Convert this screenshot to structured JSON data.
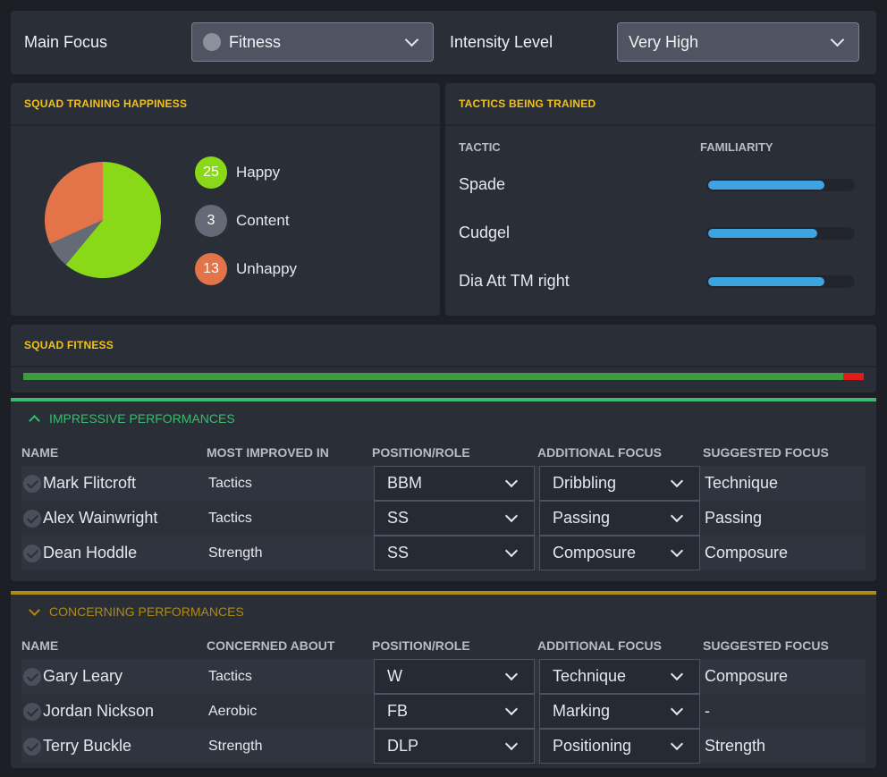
{
  "top": {
    "main_focus_label": "Main Focus",
    "main_focus_value": "Fitness",
    "intensity_label": "Intensity Level",
    "intensity_value": "Very High"
  },
  "happiness": {
    "title": "SQUAD TRAINING HAPPINESS",
    "items": [
      {
        "count": "25",
        "label": "Happy",
        "color": "#8ad918"
      },
      {
        "count": "3",
        "label": "Content",
        "color": "#646a76"
      },
      {
        "count": "13",
        "label": "Unhappy",
        "color": "#e3744a"
      }
    ]
  },
  "tactics": {
    "title": "TACTICS BEING TRAINED",
    "col_tactic": "TACTIC",
    "col_familiarity": "FAMILIARITY",
    "rows": [
      {
        "name": "Spade",
        "familiarity": 0.8
      },
      {
        "name": "Cudgel",
        "familiarity": 0.75
      },
      {
        "name": "Dia Att TM right",
        "familiarity": 0.8
      }
    ]
  },
  "fitness": {
    "title": "SQUAD FITNESS",
    "level": 0.975,
    "colors": {
      "fill": "#3f9a42",
      "rest": "#e11c1c"
    }
  },
  "impressive": {
    "title": "IMPRESSIVE PERFORMANCES",
    "color": "#3dba6f",
    "headers": [
      "NAME",
      "MOST IMPROVED IN",
      "POSITION/ROLE",
      "ADDITIONAL FOCUS",
      "SUGGESTED FOCUS"
    ],
    "rows": [
      {
        "name": "Mark Flitcroft",
        "improved": "Tactics",
        "role": "BBM",
        "additional": "Dribbling",
        "suggested": "Technique"
      },
      {
        "name": "Alex Wainwright",
        "improved": "Tactics",
        "role": "SS",
        "additional": "Passing",
        "suggested": "Passing"
      },
      {
        "name": "Dean Hoddle",
        "improved": "Strength",
        "role": "SS",
        "additional": "Composure",
        "suggested": "Composure"
      }
    ]
  },
  "concerning": {
    "title": "CONCERNING PERFORMANCES",
    "color": "#b08a14",
    "headers": [
      "NAME",
      "CONCERNED ABOUT",
      "POSITION/ROLE",
      "ADDITIONAL FOCUS",
      "SUGGESTED FOCUS"
    ],
    "rows": [
      {
        "name": "Gary Leary",
        "improved": "Tactics",
        "role": "W",
        "additional": "Technique",
        "suggested": "Composure"
      },
      {
        "name": "Jordan Nickson",
        "improved": "Aerobic",
        "role": "FB",
        "additional": "Marking",
        "suggested": "-"
      },
      {
        "name": "Terry Buckle",
        "improved": "Strength",
        "role": "DLP",
        "additional": "Positioning",
        "suggested": "Strength"
      }
    ]
  }
}
